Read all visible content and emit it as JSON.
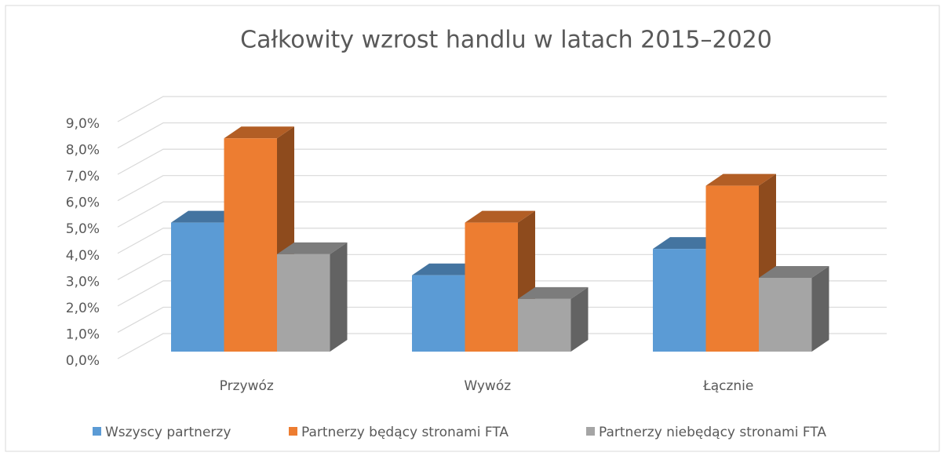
{
  "chart_data": {
    "type": "bar3d",
    "title": "Całkowity wzrost handlu w latach 2015–2020",
    "categories": [
      "Przywóz",
      "Wywóz",
      "Łącznie"
    ],
    "series": [
      {
        "name": "Wszyscy partnerzy",
        "color": "#5b9bd5",
        "values": [
          4.9,
          2.9,
          3.9
        ]
      },
      {
        "name": "Partnerzy będący stronami FTA",
        "color": "#ed7d31",
        "values": [
          8.1,
          4.9,
          6.3
        ]
      },
      {
        "name": "Partnerzy niebędący stronami FTA",
        "color": "#a5a5a5",
        "values": [
          3.7,
          2.0,
          2.8
        ]
      }
    ],
    "ylim": [
      0,
      9
    ],
    "yticks": [
      {
        "value": 0,
        "label": "0,0%"
      },
      {
        "value": 1,
        "label": "1,0%"
      },
      {
        "value": 2,
        "label": "2,0%"
      },
      {
        "value": 3,
        "label": "3,0%"
      },
      {
        "value": 4,
        "label": "4,0%"
      },
      {
        "value": 5,
        "label": "5,0%"
      },
      {
        "value": 6,
        "label": "6,0%"
      },
      {
        "value": 7,
        "label": "7,0%"
      },
      {
        "value": 8,
        "label": "8,0%"
      },
      {
        "value": 9,
        "label": "9,0%"
      }
    ],
    "grid": true,
    "legend": "bottom"
  }
}
